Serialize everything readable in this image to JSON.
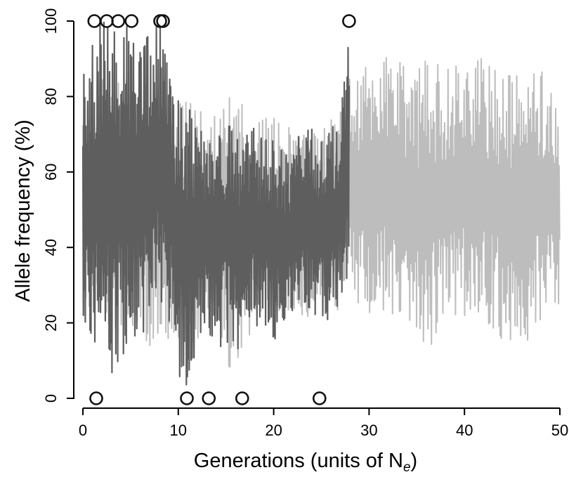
{
  "chart_data": {
    "type": "line",
    "title": "",
    "xlabel": "Generations (units of N",
    "xlabel_subscript": "e",
    "xlabel_suffix": ")",
    "ylabel": "Allele frequency (%)",
    "xlim": [
      0,
      50
    ],
    "ylim": [
      0,
      100
    ],
    "xticks": [
      "0",
      "10",
      "20",
      "30",
      "40",
      "50"
    ],
    "yticks": [
      "0",
      "20",
      "40",
      "60",
      "80",
      "100"
    ],
    "grid": false,
    "legend": "none",
    "series": [
      {
        "color": "#bdbdbd",
        "role": "background",
        "x": [
          0,
          2,
          4,
          6,
          8,
          10,
          12,
          14,
          16,
          18,
          20,
          22,
          24,
          26,
          28,
          30,
          32,
          34,
          36,
          38,
          40,
          42,
          44,
          46,
          48,
          50
        ],
        "y_min": [
          22,
          18,
          15,
          12,
          15,
          10,
          15,
          20,
          2,
          20,
          22,
          20,
          22,
          22,
          25,
          22,
          20,
          18,
          10,
          20,
          22,
          18,
          15,
          12,
          18,
          25
        ],
        "y_max": [
          80,
          88,
          85,
          85,
          82,
          80,
          78,
          75,
          82,
          75,
          75,
          72,
          70,
          74,
          85,
          90,
          92,
          88,
          90,
          88,
          92,
          90,
          88,
          85,
          90,
          75
        ]
      },
      {
        "color": "#5e5e5e",
        "role": "foreground",
        "x": [
          0,
          1,
          2,
          3,
          4,
          5,
          6,
          7,
          8,
          9,
          10,
          11,
          12,
          13,
          14,
          15,
          16,
          17,
          18,
          19,
          20,
          21,
          22,
          23,
          24,
          25,
          26,
          27,
          27.9
        ],
        "y_min": [
          20,
          10,
          8,
          5,
          8,
          18,
          10,
          15,
          25,
          20,
          5,
          2,
          15,
          15,
          12,
          15,
          10,
          22,
          18,
          20,
          15,
          18,
          15,
          22,
          22,
          18,
          22,
          22,
          35
        ],
        "y_max": [
          85,
          95,
          100,
          100,
          100,
          100,
          92,
          98,
          100,
          90,
          80,
          82,
          70,
          72,
          70,
          75,
          70,
          70,
          72,
          68,
          72,
          65,
          70,
          70,
          72,
          70,
          72,
          75,
          100
        ]
      }
    ],
    "fixation_markers": [
      {
        "x": 1.2,
        "y": 100
      },
      {
        "x": 2.5,
        "y": 100
      },
      {
        "x": 3.7,
        "y": 100
      },
      {
        "x": 5.1,
        "y": 100
      },
      {
        "x": 8.1,
        "y": 100
      },
      {
        "x": 8.4,
        "y": 100
      },
      {
        "x": 27.9,
        "y": 100
      },
      {
        "x": 1.4,
        "y": 0
      },
      {
        "x": 10.9,
        "y": 0
      },
      {
        "x": 13.2,
        "y": 0
      },
      {
        "x": 16.7,
        "y": 0
      },
      {
        "x": 24.8,
        "y": 0
      }
    ]
  }
}
